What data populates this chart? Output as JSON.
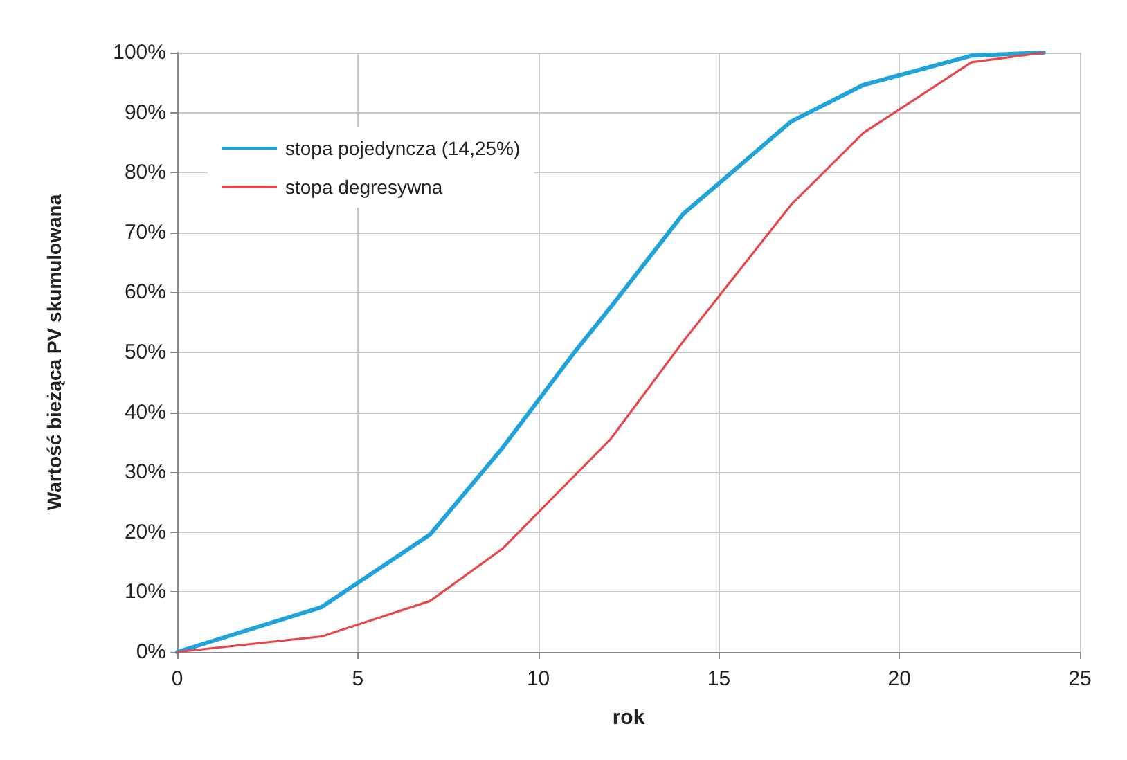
{
  "chart_data": {
    "type": "line",
    "xlabel": "rok",
    "ylabel": "Wartość bieżąca PV skumulowana",
    "series": [
      {
        "name": "stopa pojedyncza (14,25%)",
        "color": "#1fa3d9",
        "x": [
          0,
          4,
          7,
          9,
          10,
          11,
          12,
          14,
          17,
          19,
          22,
          24
        ],
        "values": [
          0,
          7.5,
          19.6,
          34,
          42,
          50,
          57.5,
          73,
          88.5,
          94.6,
          99.5,
          100
        ]
      },
      {
        "name": "stopa degresywna",
        "color": "#e8464b",
        "x": [
          0,
          4,
          7,
          9,
          12,
          14,
          17,
          19,
          22,
          24
        ],
        "values": [
          0,
          2.6,
          8.5,
          17.2,
          35.5,
          51.7,
          74.6,
          86.6,
          98.4,
          100
        ]
      }
    ],
    "xlim": [
      0,
      25
    ],
    "xticks": [
      0,
      5,
      10,
      15,
      20,
      25
    ],
    "ylim": [
      0,
      100
    ],
    "yticks": [
      {
        "value": 0,
        "label": "0%"
      },
      {
        "value": 10,
        "label": "10%"
      },
      {
        "value": 20,
        "label": "20%"
      },
      {
        "value": 30,
        "label": "30%"
      },
      {
        "value": 40,
        "label": "40%"
      },
      {
        "value": 50,
        "label": "50%"
      },
      {
        "value": 60,
        "label": "60%"
      },
      {
        "value": 70,
        "label": "70%"
      },
      {
        "value": 80,
        "label": "80%"
      },
      {
        "value": 90,
        "label": "90%"
      },
      {
        "value": 100,
        "label": "100%"
      }
    ],
    "grid": true,
    "legend": "top left",
    "marker": "none",
    "line_style": "solid"
  }
}
